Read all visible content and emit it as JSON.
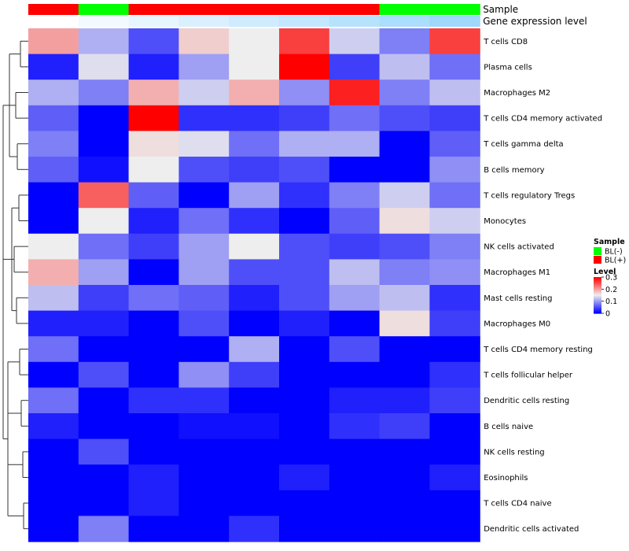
{
  "chart_data": {
    "type": "heatmap",
    "annotation_tracks": [
      {
        "name": "Sample",
        "values": [
          "BL(+)",
          "BL(-)",
          "BL(+)",
          "BL(+)",
          "BL(+)",
          "BL(+)",
          "BL(+)",
          "BL(-)",
          "BL(-)"
        ]
      },
      {
        "name": "Gene expression level",
        "values": [
          0.0,
          0.1,
          0.2,
          0.3,
          0.4,
          0.5,
          0.6,
          0.7,
          0.8
        ]
      }
    ],
    "rows": [
      "T cells CD8",
      "Plasma cells",
      "Macrophages M2",
      "T cells CD4 memory activated",
      "T cells gamma delta",
      "B cells memory",
      "T cells regulatory  Tregs",
      "Monocytes",
      "NK cells activated",
      "Macrophages M1",
      "Mast cells resting",
      "Macrophages M0",
      "T cells CD4 memory resting",
      "T cells follicular helper",
      "Dendritic cells resting",
      "B cells naive",
      "NK cells resting",
      "Eosinophils",
      "T cells CD4 naive",
      "Dendritic cells activated"
    ],
    "values": [
      [
        0.2,
        0.11,
        0.05,
        0.17,
        0.15,
        0.26,
        0.13,
        0.08,
        0.26
      ],
      [
        0.02,
        0.14,
        0.02,
        0.1,
        0.15,
        0.3,
        0.04,
        0.12,
        0.07
      ],
      [
        0.11,
        0.08,
        0.19,
        0.13,
        0.19,
        0.09,
        0.28,
        0.08,
        0.12
      ],
      [
        0.06,
        0.0,
        0.3,
        0.03,
        0.03,
        0.04,
        0.07,
        0.05,
        0.04
      ],
      [
        0.08,
        0.0,
        0.16,
        0.14,
        0.07,
        0.11,
        0.11,
        0.0,
        0.06
      ],
      [
        0.06,
        0.01,
        0.15,
        0.05,
        0.04,
        0.05,
        0.0,
        0.0,
        0.09
      ],
      [
        0.0,
        0.24,
        0.06,
        0.0,
        0.1,
        0.03,
        0.08,
        0.13,
        0.07
      ],
      [
        0.0,
        0.15,
        0.02,
        0.07,
        0.03,
        0.0,
        0.06,
        0.16,
        0.13
      ],
      [
        0.15,
        0.07,
        0.04,
        0.1,
        0.15,
        0.05,
        0.04,
        0.05,
        0.08
      ],
      [
        0.19,
        0.1,
        0.0,
        0.1,
        0.05,
        0.05,
        0.12,
        0.08,
        0.09
      ],
      [
        0.12,
        0.04,
        0.07,
        0.06,
        0.02,
        0.05,
        0.1,
        0.12,
        0.03
      ],
      [
        0.02,
        0.02,
        0.0,
        0.05,
        0.0,
        0.02,
        0.0,
        0.16,
        0.04
      ],
      [
        0.07,
        0.0,
        0.0,
        0.0,
        0.11,
        0.0,
        0.05,
        0.0,
        0.0
      ],
      [
        0.0,
        0.05,
        0.0,
        0.09,
        0.04,
        0.0,
        0.0,
        0.0,
        0.03
      ],
      [
        0.07,
        0.0,
        0.03,
        0.03,
        0.0,
        0.0,
        0.02,
        0.02,
        0.04
      ],
      [
        0.02,
        0.0,
        0.0,
        0.01,
        0.01,
        0.0,
        0.03,
        0.04,
        0.0
      ],
      [
        0.0,
        0.05,
        0.0,
        0.0,
        0.0,
        0.0,
        0.0,
        0.0,
        0.0
      ],
      [
        0.0,
        0.0,
        0.02,
        0.0,
        0.0,
        0.02,
        0.0,
        0.0,
        0.02
      ],
      [
        0.0,
        0.0,
        0.02,
        0.0,
        0.0,
        0.0,
        0.0,
        0.0,
        0.0
      ],
      [
        0.0,
        0.08,
        0.0,
        0.0,
        0.03,
        0.0,
        0.0,
        0.0,
        0.0
      ]
    ],
    "color_scale": {
      "min": 0.0,
      "mid": 0.15,
      "max": 0.3,
      "low_color": "#0000ff",
      "mid_color": "#eeeeee",
      "high_color": "#ff0000"
    },
    "legend": {
      "placement": "right",
      "sample_title": "Sample",
      "sample_entries": [
        {
          "label": "BL(-)",
          "color": "#00ff00"
        },
        {
          "label": "BL(+)",
          "color": "#ff0000"
        }
      ],
      "level_title": "Level",
      "level_ticks": [
        "0.3",
        "0.2",
        "0.1",
        "0"
      ],
      "level_tick_values": [
        0.3,
        0.2,
        0.1,
        0.0
      ]
    },
    "row_dendrogram": true,
    "grid": false
  }
}
